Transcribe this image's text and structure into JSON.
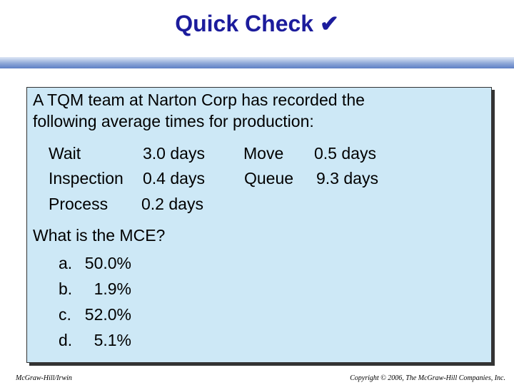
{
  "title": "Quick Check ✔",
  "intro": [
    "A TQM team at Narton Corp has recorded the",
    "following average times for production:"
  ],
  "times": [
    {
      "label": "Wait",
      "value": "3.0 days"
    },
    {
      "label": "Inspection",
      "value": "0.4 days"
    },
    {
      "label": "Process",
      "value": "0.2 days"
    },
    {
      "label": "Move",
      "value": "0.5 days"
    },
    {
      "label": "Queue",
      "value": "9.3 days"
    }
  ],
  "question": "What is the MCE?",
  "choices": [
    {
      "letter": "a.",
      "value": "50.0%"
    },
    {
      "letter": "b.",
      "value": "1.9%"
    },
    {
      "letter": "c.",
      "value": "52.0%"
    },
    {
      "letter": "d.",
      "value": "5.1%"
    }
  ],
  "footer": {
    "left": "McGraw-Hill/Irwin",
    "right": "Copyright © 2006, The McGraw-Hill Companies, Inc."
  }
}
